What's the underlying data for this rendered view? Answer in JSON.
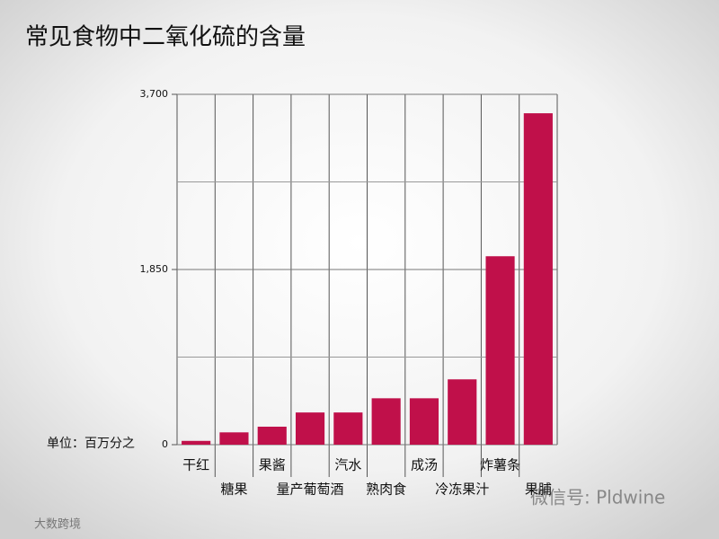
{
  "chart_data": {
    "type": "bar",
    "title": "常见食物中二氧化硫的含量",
    "unit_label": "单位：百万分之",
    "categories": [
      "干红",
      "糖果",
      "果酱",
      "量产葡萄酒",
      "汽水",
      "熟肉食",
      "成汤",
      "冷冻果汁",
      "炸薯条",
      "果脯"
    ],
    "values": [
      40,
      130,
      190,
      340,
      340,
      490,
      490,
      690,
      1990,
      3500
    ],
    "color": "#c0104a",
    "ylim": [
      0,
      3700
    ],
    "yticks": [
      0,
      {
        "value": 1850,
        "label": "1,850"
      },
      {
        "value": 3700,
        "label": "3,700"
      }
    ],
    "minor_yticks": [
      925,
      2775
    ],
    "grid": true
  },
  "watermarks": [
    "微信号: Pldwine",
    "大数跨境"
  ]
}
